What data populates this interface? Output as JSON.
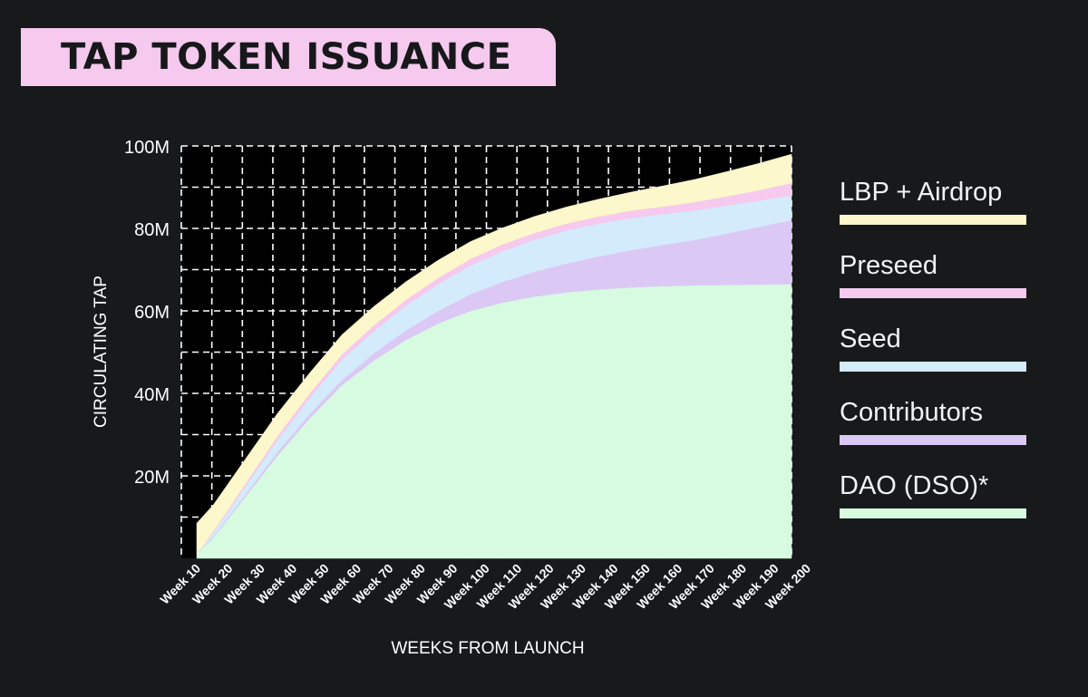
{
  "title": "TAP TOKEN ISSUANCE",
  "colors": {
    "background": "#17191b",
    "title_bg": "#f6c9ee",
    "plot_bg": "#000000"
  },
  "chart_data": {
    "type": "area",
    "stacked": true,
    "xlabel": "WEEKS FROM LAUNCH",
    "ylabel": "CIRCULATING TAP",
    "ylim": [
      0,
      100000000
    ],
    "yticks": [
      20000000,
      40000000,
      60000000,
      80000000,
      100000000
    ],
    "ytick_labels": [
      "20M",
      "40M",
      "60M",
      "80M",
      "100M"
    ],
    "x_range": [
      10,
      200
    ],
    "categories": [
      "Week 10",
      "Week 20",
      "Week 30",
      "Week 40",
      "Week 50",
      "Week 60",
      "Week 70",
      "Week 80",
      "Week 90",
      "Week 100",
      "Week 110",
      "Week 120",
      "Week 130",
      "Week 140",
      "Week 150",
      "Week 160",
      "Week 170",
      "Week 180",
      "Week 190",
      "Week 200"
    ],
    "x": [
      10,
      20,
      30,
      40,
      50,
      60,
      70,
      80,
      90,
      100,
      110,
      120,
      130,
      140,
      150,
      160,
      170,
      180,
      190,
      200
    ],
    "grid": true,
    "legend_position": "right",
    "series": [
      {
        "name": "DAO (DSO)*",
        "color": "#d7fbe0",
        "values": [
          1,
          5,
          15,
          25,
          34,
          42,
          48,
          53,
          57,
          60,
          62,
          63.5,
          64.5,
          65.2,
          65.7,
          66,
          66.2,
          66.3,
          66.4,
          66.5
        ]
      },
      {
        "name": "Contributors",
        "color": "#dcc8f5",
        "values": [
          0,
          0.2,
          0.5,
          0.8,
          1,
          1.2,
          1.7,
          2.3,
          3,
          4,
          5,
          6,
          7,
          8,
          9,
          10,
          11,
          12.5,
          14,
          15.5
        ]
      },
      {
        "name": "Seed",
        "color": "#d4ebfb",
        "values": [
          0,
          1,
          2,
          3,
          4,
          5,
          5.5,
          6,
          6.5,
          7,
          7.5,
          7.8,
          8,
          8,
          7.8,
          7.5,
          7.2,
          6.8,
          6.4,
          6
        ]
      },
      {
        "name": "Preseed",
        "color": "#f6c9ee",
        "values": [
          0,
          0.3,
          0.6,
          0.9,
          1,
          1.2,
          1.3,
          1.4,
          1.5,
          1.6,
          1.6,
          1.6,
          1.7,
          1.7,
          1.8,
          1.8,
          2,
          2.2,
          2.5,
          3
        ]
      },
      {
        "name": "LBP + Airdrop",
        "color": "#fdf7cc",
        "values": [
          7.5,
          6.5,
          6,
          5.5,
          5,
          4.8,
          4.6,
          4.4,
          4.3,
          4.2,
          4,
          4,
          4,
          4.2,
          4.5,
          5,
          5.5,
          6,
          6.5,
          7
        ]
      }
    ]
  },
  "legend": [
    {
      "label": "LBP + Airdrop",
      "color": "#fdf7cc"
    },
    {
      "label": "Preseed",
      "color": "#f6c9ee"
    },
    {
      "label": "Seed",
      "color": "#d4ebfb"
    },
    {
      "label": "Contributors",
      "color": "#dcc8f5"
    },
    {
      "label": "DAO (DSO)*",
      "color": "#d7fbe0"
    }
  ]
}
